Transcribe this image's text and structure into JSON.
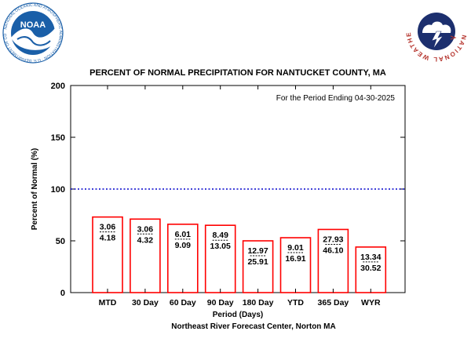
{
  "logos": {
    "noaa": {
      "text": "NOAA",
      "ring_text": "NATIONAL OCEANIC AND ATMOSPHERIC ADMINISTRATION · U.S. DEPARTMENT OF COMMERCE",
      "color": "#1a5fa8"
    },
    "nws": {
      "ring_text": "NATIONAL WEATHER SERVICE",
      "color": "#b5332c"
    }
  },
  "chart_data": {
    "type": "bar",
    "title": "PERCENT OF NORMAL PRECIPITATION FOR NANTUCKET COUNTY, MA",
    "annotation": "For the Period Ending 04-30-2025",
    "xlabel": "Period (Days)",
    "ylabel": "Percent of Normal (%)",
    "footer": "Northeast River Forecast Center, Norton MA",
    "ylim": [
      0,
      200
    ],
    "yticks": [
      "0",
      "50",
      "100",
      "150",
      "200"
    ],
    "reference_line": {
      "value": 100,
      "style": "dotted",
      "color": "#0000cc"
    },
    "bar_color": "#ff0000",
    "categories": [
      "MTD",
      "30 Day",
      "60 Day",
      "90 Day",
      "180 Day",
      "YTD",
      "365 Day",
      "WYR"
    ],
    "values": [
      73,
      71,
      66,
      65,
      50,
      53,
      61,
      44
    ],
    "observed": [
      "3.06",
      "3.06",
      "6.01",
      "8.49",
      "12.97",
      "9.01",
      "27.93",
      "13.34"
    ],
    "normal": [
      "4.18",
      "4.32",
      "9.09",
      "13.05",
      "25.91",
      "16.91",
      "46.10",
      "30.52"
    ]
  }
}
